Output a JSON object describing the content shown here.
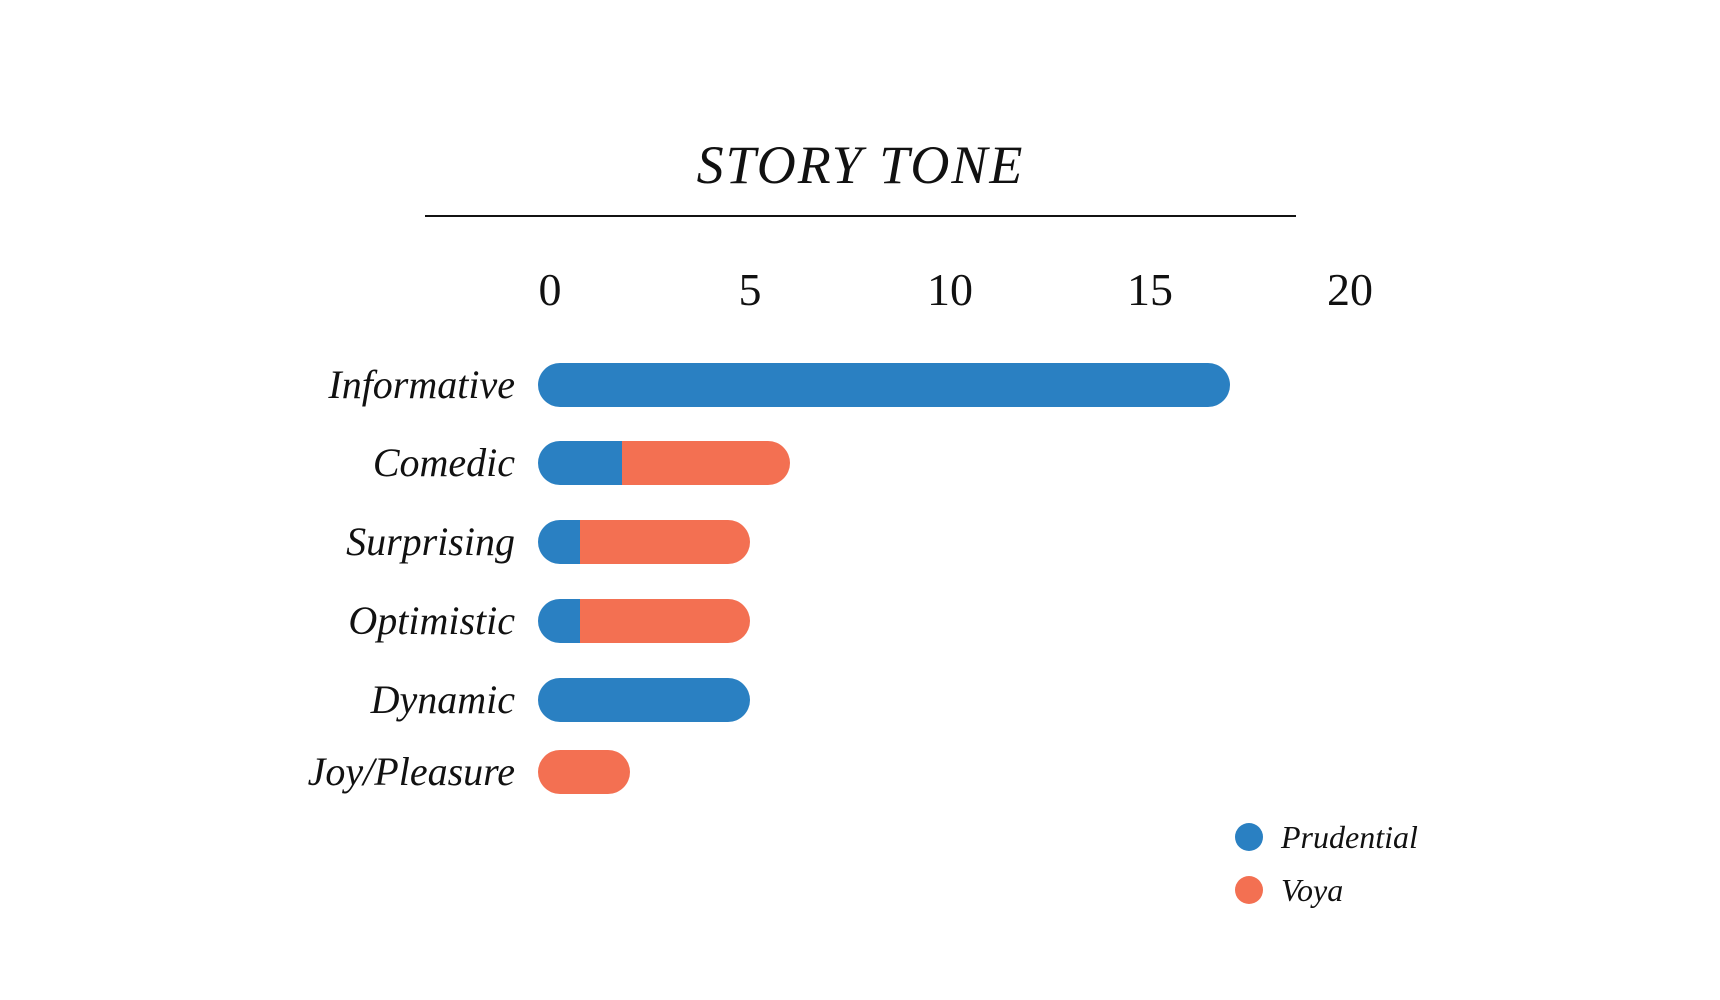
{
  "chart_data": {
    "type": "bar",
    "orientation": "horizontal",
    "stacked": true,
    "title": "STORY TONE",
    "categories": [
      "Informative",
      "Comedic",
      "Surprising",
      "Optimistic",
      "Dynamic",
      "Joy/Pleasure"
    ],
    "series": [
      {
        "name": "Prudential",
        "color": "#2a80c2",
        "values": [
          17,
          2,
          1,
          1,
          5,
          0
        ]
      },
      {
        "name": "Voya",
        "color": "#f37052",
        "values": [
          0,
          4,
          4,
          4,
          0,
          2
        ]
      }
    ],
    "x_ticks": [
      0,
      5,
      10,
      15,
      20
    ],
    "xlim": [
      0,
      20
    ],
    "xlabel": "",
    "ylabel": "",
    "grid": false,
    "legend_position": "bottom-right",
    "text_color": "#111111",
    "divider_color": "#131313"
  }
}
